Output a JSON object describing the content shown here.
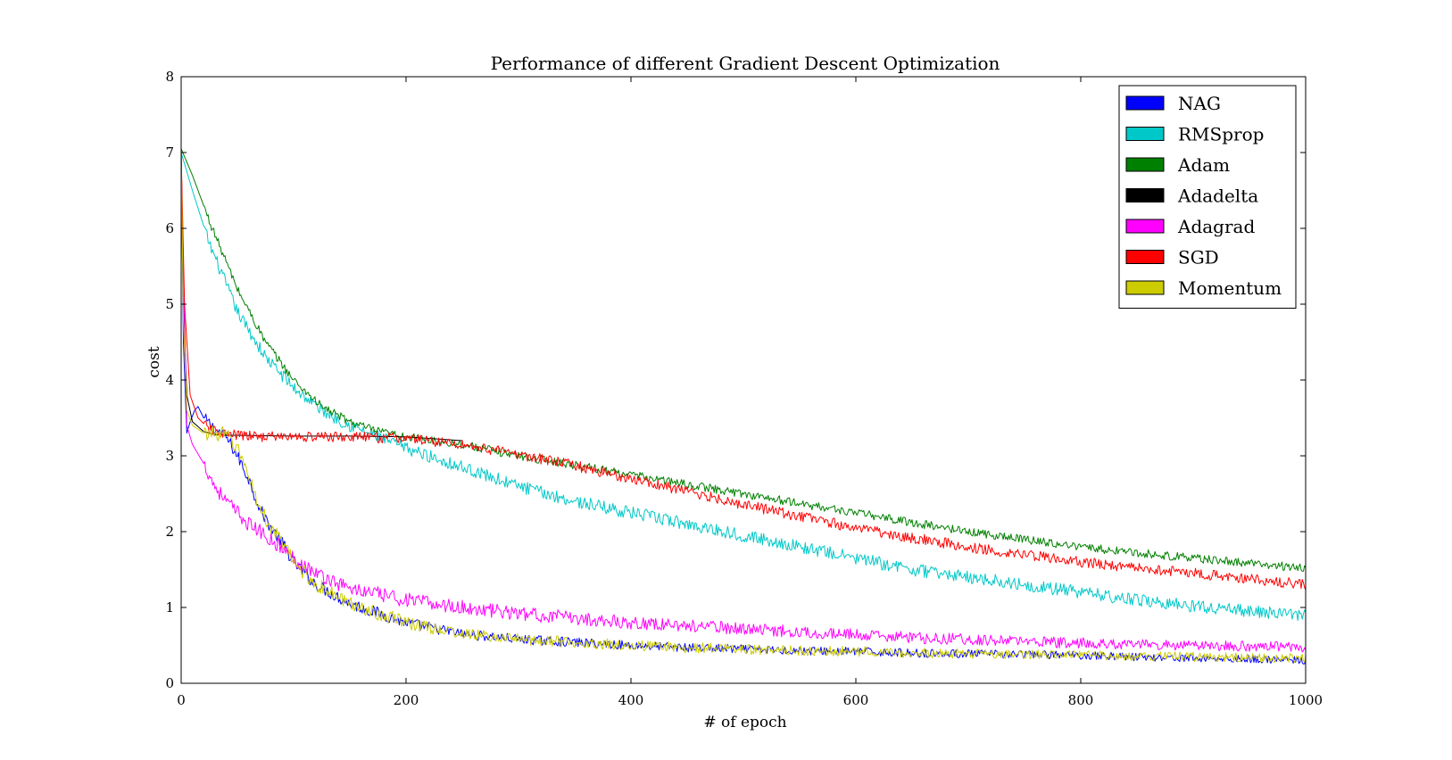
{
  "chart_data": {
    "type": "line",
    "title": "Performance of different Gradient Descent Optimization",
    "xlabel": "# of epoch",
    "ylabel": "cost",
    "xlim": [
      0,
      1000
    ],
    "ylim": [
      0,
      8
    ],
    "xticks": [
      0,
      200,
      400,
      600,
      800,
      1000
    ],
    "yticks": [
      0,
      1,
      2,
      3,
      4,
      5,
      6,
      7,
      8
    ],
    "grid": false,
    "legend_position": "top-right",
    "series": [
      {
        "name": "NAG",
        "color": "#0000ff",
        "noise": 0.06,
        "x": [
          0,
          2,
          5,
          8,
          12,
          15,
          20,
          30,
          40,
          50,
          60,
          70,
          80,
          90,
          100,
          120,
          150,
          200,
          250,
          300,
          350,
          400,
          450,
          500,
          550,
          600,
          650,
          700,
          750,
          800,
          850,
          900,
          950,
          1000
        ],
        "y": [
          7.0,
          4.5,
          3.3,
          3.45,
          3.6,
          3.65,
          3.5,
          3.35,
          3.25,
          3.0,
          2.7,
          2.3,
          2.05,
          1.85,
          1.6,
          1.3,
          1.05,
          0.8,
          0.65,
          0.58,
          0.54,
          0.5,
          0.47,
          0.45,
          0.43,
          0.42,
          0.4,
          0.39,
          0.38,
          0.37,
          0.35,
          0.33,
          0.32,
          0.3
        ]
      },
      {
        "name": "RMSprop",
        "color": "#00c8c8",
        "noise": 0.06,
        "x": [
          0,
          10,
          25,
          50,
          75,
          100,
          125,
          150,
          175,
          200,
          250,
          300,
          350,
          400,
          450,
          500,
          550,
          600,
          650,
          700,
          750,
          800,
          850,
          900,
          950,
          1000
        ],
        "y": [
          7.0,
          6.5,
          5.8,
          4.9,
          4.3,
          3.9,
          3.6,
          3.4,
          3.25,
          3.1,
          2.85,
          2.6,
          2.4,
          2.25,
          2.1,
          1.95,
          1.8,
          1.65,
          1.5,
          1.4,
          1.3,
          1.2,
          1.1,
          1.02,
          0.95,
          0.9
        ]
      },
      {
        "name": "Adam",
        "color": "#008000",
        "noise": 0.04,
        "x": [
          0,
          10,
          25,
          50,
          75,
          100,
          125,
          150,
          175,
          200,
          250,
          300,
          350,
          400,
          450,
          500,
          550,
          600,
          650,
          700,
          750,
          800,
          850,
          900,
          950,
          1000
        ],
        "y": [
          7.05,
          6.7,
          6.1,
          5.2,
          4.5,
          4.0,
          3.65,
          3.45,
          3.32,
          3.25,
          3.15,
          3.0,
          2.88,
          2.75,
          2.62,
          2.5,
          2.37,
          2.25,
          2.12,
          2.0,
          1.9,
          1.8,
          1.72,
          1.65,
          1.58,
          1.52
        ]
      },
      {
        "name": "Adadelta",
        "color": "#000000",
        "noise": 0.0,
        "x": [
          0,
          2,
          5,
          10,
          20,
          30,
          40,
          50,
          100,
          150,
          200,
          250
        ],
        "y": [
          7.0,
          5.0,
          3.8,
          3.45,
          3.32,
          3.28,
          3.27,
          3.27,
          3.26,
          3.26,
          3.25,
          3.2
        ]
      },
      {
        "name": "Adagrad",
        "color": "#ff00ff",
        "noise": 0.07,
        "x": [
          0,
          5,
          10,
          20,
          30,
          40,
          50,
          60,
          70,
          80,
          90,
          100,
          120,
          150,
          200,
          250,
          300,
          350,
          400,
          450,
          500,
          550,
          600,
          650,
          700,
          750,
          800,
          850,
          900,
          950,
          1000
        ],
        "y": [
          6.9,
          3.4,
          3.15,
          2.9,
          2.6,
          2.4,
          2.25,
          2.1,
          2.0,
          1.9,
          1.78,
          1.65,
          1.45,
          1.25,
          1.1,
          1.0,
          0.92,
          0.86,
          0.8,
          0.76,
          0.72,
          0.68,
          0.64,
          0.6,
          0.58,
          0.55,
          0.53,
          0.51,
          0.5,
          0.49,
          0.48
        ]
      },
      {
        "name": "SGD",
        "color": "#ff0000",
        "noise": 0.05,
        "x": [
          0,
          3,
          8,
          15,
          25,
          40,
          60,
          100,
          150,
          200,
          250,
          300,
          350,
          400,
          450,
          500,
          550,
          600,
          650,
          700,
          750,
          800,
          850,
          900,
          950,
          1000
        ],
        "y": [
          7.0,
          5.0,
          3.8,
          3.5,
          3.35,
          3.28,
          3.26,
          3.25,
          3.25,
          3.23,
          3.15,
          3.02,
          2.87,
          2.7,
          2.53,
          2.36,
          2.2,
          2.05,
          1.92,
          1.8,
          1.7,
          1.6,
          1.52,
          1.45,
          1.38,
          1.3
        ]
      },
      {
        "name": "Momentum",
        "color": "#cccc00",
        "noise": 0.07,
        "x": [
          0,
          2,
          5,
          10,
          15,
          20,
          30,
          40,
          50,
          60,
          70,
          80,
          90,
          100,
          120,
          150,
          200,
          250,
          300,
          350,
          400,
          450,
          500,
          550,
          600,
          650,
          700,
          750,
          800,
          850,
          900,
          950,
          1000
        ],
        "y": [
          7.0,
          4.8,
          3.6,
          3.4,
          3.35,
          3.3,
          3.3,
          3.28,
          3.1,
          2.75,
          2.3,
          2.05,
          1.85,
          1.6,
          1.3,
          1.05,
          0.8,
          0.65,
          0.58,
          0.54,
          0.5,
          0.47,
          0.45,
          0.43,
          0.42,
          0.4,
          0.39,
          0.38,
          0.37,
          0.36,
          0.35,
          0.34,
          0.33
        ]
      }
    ]
  }
}
